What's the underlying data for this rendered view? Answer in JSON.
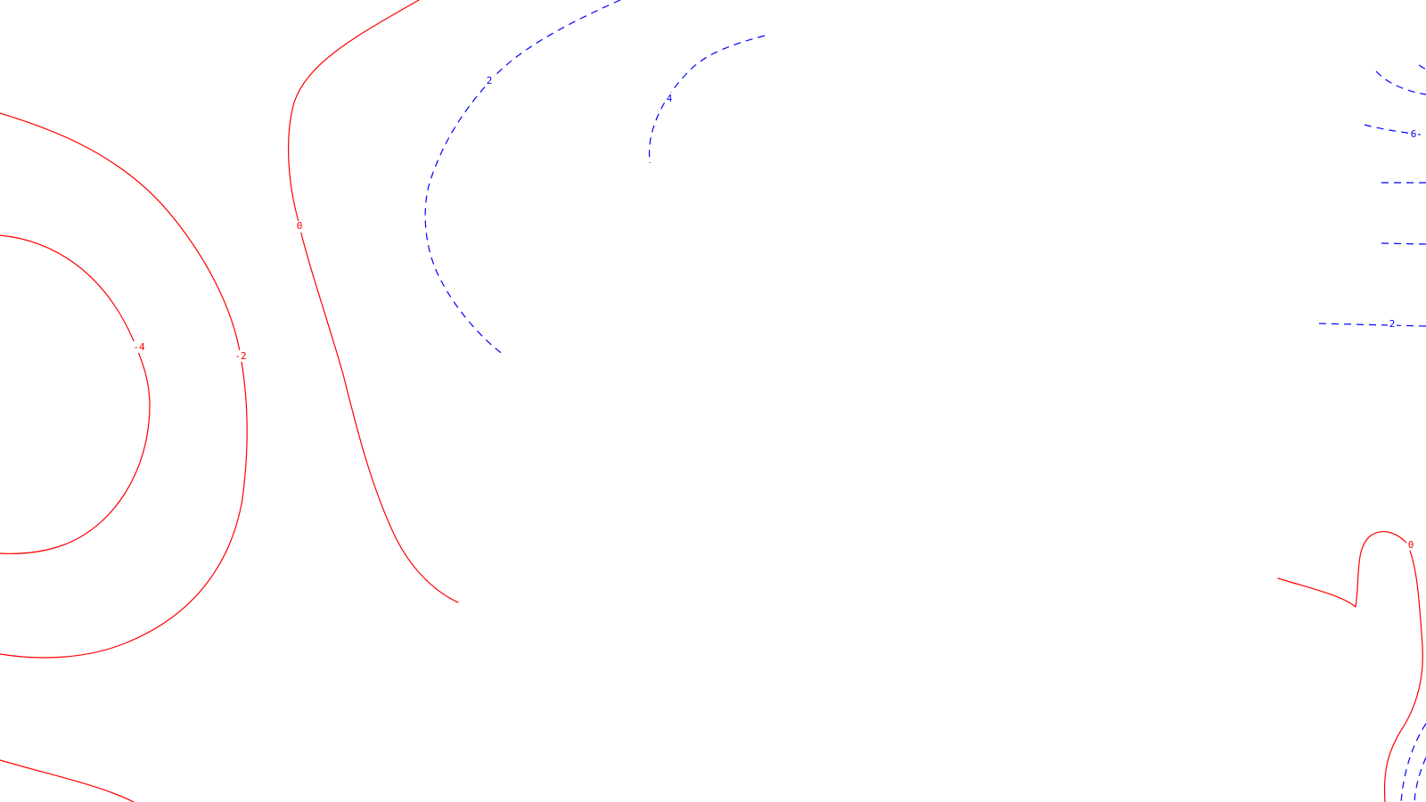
{
  "colors": {
    "background": "#ffffff",
    "negative_contour": "#ff0000",
    "positive_contour": "#0000ff"
  },
  "contours": {
    "negative": {
      "line_style": "solid",
      "values": [
        -4,
        -2,
        0
      ]
    },
    "positive": {
      "line_style": "dashed",
      "values": [
        2,
        4,
        6
      ]
    }
  },
  "labels": {
    "neg4": "-4",
    "neg2": "-2",
    "zero_left": "0",
    "zero_right": "0",
    "pos2_left": "2",
    "pos4": "4",
    "pos6": "6",
    "pos2_right": "2"
  }
}
